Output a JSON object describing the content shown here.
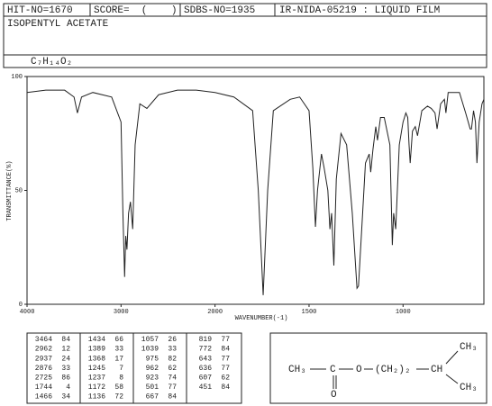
{
  "header": {
    "hit_no": "HIT-NO=1670",
    "score": "SCORE=  (    )",
    "sdbs_no": "SDBS-NO=1935",
    "source": "IR-NIDA-05219 : LIQUID FILM",
    "name": "ISOPENTYL ACETATE",
    "formula": "C₇H₁₄O₂"
  },
  "chart_data": {
    "type": "line",
    "x_label": "WAVENUMBER(-1)",
    "y_label": "TRANSMITTANCE(%)",
    "color": "#222222",
    "x": [
      4000,
      3800,
      3600,
      3500,
      3464,
      3420,
      3300,
      3100,
      3000,
      2980,
      2962,
      2950,
      2937,
      2920,
      2900,
      2876,
      2850,
      2800,
      2725,
      2600,
      2400,
      2200,
      2000,
      1900,
      1800,
      1770,
      1744,
      1720,
      1690,
      1600,
      1550,
      1500,
      1480,
      1466,
      1455,
      1434,
      1420,
      1400,
      1389,
      1380,
      1368,
      1355,
      1330,
      1300,
      1270,
      1245,
      1237,
      1215,
      1200,
      1180,
      1172,
      1160,
      1145,
      1136,
      1120,
      1100,
      1070,
      1057,
      1050,
      1039,
      1020,
      1000,
      985,
      975,
      968,
      962,
      950,
      935,
      923,
      900,
      870,
      850,
      830,
      819,
      800,
      780,
      772,
      760,
      700,
      667,
      643,
      636,
      625,
      615,
      607,
      595,
      580,
      570
    ],
    "values": [
      93,
      94,
      94,
      91,
      84,
      91,
      93,
      91,
      80,
      40,
      12,
      30,
      24,
      40,
      45,
      33,
      70,
      88,
      86,
      92,
      94,
      94,
      93,
      91,
      85,
      50,
      4,
      50,
      85,
      90,
      91,
      85,
      60,
      34,
      50,
      66,
      60,
      50,
      33,
      40,
      17,
      55,
      75,
      70,
      40,
      7,
      8,
      40,
      62,
      66,
      58,
      68,
      78,
      72,
      82,
      82,
      70,
      26,
      40,
      33,
      70,
      80,
      84,
      82,
      70,
      62,
      76,
      78,
      74,
      85,
      87,
      86,
      84,
      77,
      88,
      90,
      84,
      93,
      93,
      84,
      77,
      77,
      85,
      80,
      62,
      80,
      88,
      90
    ],
    "xlim": [
      4000,
      570
    ],
    "x_scale_change": 2000,
    "xticks": [
      4000,
      3000,
      2000,
      1500,
      1000
    ],
    "ylim": [
      0,
      100
    ],
    "yticks": [
      0,
      50,
      100
    ]
  },
  "peak_table": {
    "groups": [
      [
        [
          3464,
          84
        ],
        [
          2962,
          12
        ],
        [
          2937,
          24
        ],
        [
          2876,
          33
        ],
        [
          2725,
          86
        ],
        [
          1744,
          4
        ],
        [
          1466,
          34
        ]
      ],
      [
        [
          1434,
          66
        ],
        [
          1389,
          33
        ],
        [
          1368,
          17
        ],
        [
          1245,
          7
        ],
        [
          1237,
          8
        ],
        [
          1172,
          58
        ],
        [
          1136,
          72
        ]
      ],
      [
        [
          1057,
          26
        ],
        [
          1039,
          33
        ],
        [
          975,
          82
        ],
        [
          962,
          62
        ],
        [
          923,
          74
        ],
        [
          501,
          77
        ],
        [
          667,
          84
        ]
      ],
      [
        [
          819,
          77
        ],
        [
          772,
          84
        ],
        [
          643,
          77
        ],
        [
          636,
          77
        ],
        [
          607,
          62
        ],
        [
          451,
          84
        ]
      ]
    ]
  },
  "structure": {
    "ch3_left": "CH₃",
    "c": "C",
    "o_ester": "O",
    "chain": "(CH₂)₂",
    "ch": "CH",
    "ch3_top": "CH₃",
    "ch3_bottom": "CH₃",
    "o_carbonyl": "O"
  }
}
